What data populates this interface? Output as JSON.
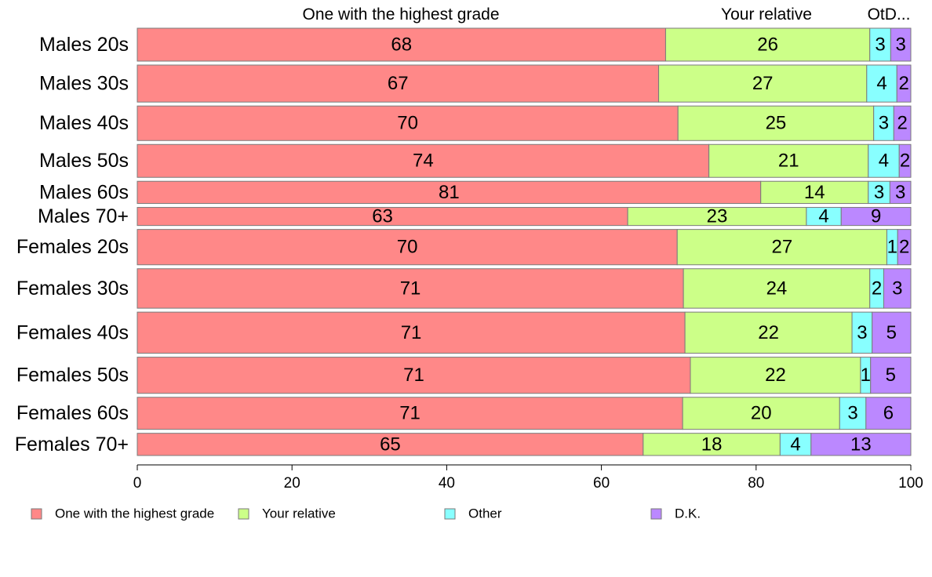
{
  "chart_data": {
    "type": "bar",
    "orientation": "horizontal",
    "stacked": true,
    "variable_width": true,
    "categories": [
      "Males 20s",
      "Males 30s",
      "Males 40s",
      "Males 50s",
      "Males 60s",
      "Males 70+",
      "Females 20s",
      "Females 30s",
      "Females 40s",
      "Females 50s",
      "Females 60s",
      "Females 70+"
    ],
    "row_weights": [
      40,
      45,
      42,
      40,
      27,
      22,
      43,
      48,
      50,
      44,
      39,
      27
    ],
    "series": [
      {
        "name": "One with the highest grade",
        "color": "#ff8888",
        "values": [
          68.3,
          67.4,
          69.9,
          73.9,
          80.6,
          63.4,
          69.8,
          70.6,
          70.8,
          71.5,
          70.5,
          65.4
        ],
        "labels": [
          "68",
          "67",
          "70",
          "74",
          "81",
          "63",
          "70",
          "71",
          "71",
          "71",
          "71",
          "65"
        ]
      },
      {
        "name": "Your relative",
        "color": "#ccff88",
        "values": [
          26.4,
          26.9,
          25.3,
          20.6,
          13.9,
          23.1,
          27.1,
          24.1,
          21.6,
          22.0,
          20.3,
          17.7
        ],
        "labels": [
          "26",
          "27",
          "25",
          "21",
          "14",
          "23",
          "27",
          "24",
          "22",
          "22",
          "20",
          "18"
        ]
      },
      {
        "name": "Other",
        "color": "#88ffff",
        "values": [
          2.7,
          3.9,
          2.6,
          4.0,
          2.8,
          4.5,
          1.4,
          1.8,
          2.6,
          1.3,
          3.4,
          4.0
        ],
        "labels": [
          "3",
          "4",
          "3",
          "4",
          "3",
          "4",
          "1",
          "2",
          "3",
          "1",
          "3",
          "4"
        ]
      },
      {
        "name": "D.K.",
        "color": "#bb88ff",
        "values": [
          2.6,
          1.8,
          2.2,
          1.5,
          2.7,
          9.0,
          1.7,
          3.5,
          5.0,
          5.2,
          5.8,
          12.9
        ],
        "labels": [
          "3",
          "2",
          "2",
          "2",
          "3",
          "9",
          "2",
          "3",
          "5",
          "5",
          "6",
          "13"
        ]
      }
    ],
    "top_labels": [
      "One with the highest grade",
      "Your relative",
      "OtD..."
    ],
    "xlim": [
      0,
      100
    ],
    "x_ticks": [
      0,
      20,
      40,
      60,
      80,
      100
    ],
    "x_tick_labels": [
      "0",
      "20",
      "40",
      "60",
      "80",
      "100"
    ],
    "grid": false,
    "legend": {
      "placement": "bottom",
      "entries": [
        "One with the highest grade",
        "Your relative",
        "Other",
        "D.K."
      ]
    }
  }
}
